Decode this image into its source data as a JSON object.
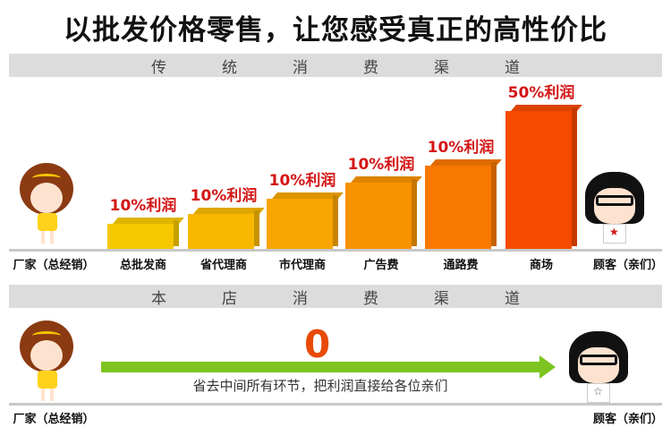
{
  "title": "以批发价格零售，让您感受真正的高性价比",
  "traditional": {
    "header": [
      "传",
      "统",
      "消",
      "费",
      "渠",
      "道"
    ],
    "manufacturer": "厂家（总经销）",
    "customer": "顾客（亲们）",
    "stages": [
      {
        "label": "总批发商",
        "profit": "10%利润",
        "color": "#f7c800"
      },
      {
        "label": "省代理商",
        "profit": "10%利润",
        "color": "#f8b800"
      },
      {
        "label": "市代理商",
        "profit": "10%利润",
        "color": "#f7a500"
      },
      {
        "label": "广告费",
        "profit": "10%利润",
        "color": "#f89300"
      },
      {
        "label": "通路费",
        "profit": "10%利润",
        "color": "#f87800"
      },
      {
        "label": "商场",
        "profit": "50%利润",
        "color": "#f54a00"
      }
    ]
  },
  "store": {
    "header": [
      "本",
      "店",
      "消",
      "费",
      "渠",
      "道"
    ],
    "markup": "0",
    "caption": "省去中间所有环节，把利润直接给各位亲们",
    "manufacturer": "厂家（总经销）",
    "customer": "顾客（亲们）"
  },
  "colors": {
    "profit_text": "#d41515",
    "arrow": "#7dc421",
    "zero": "#e84a08"
  }
}
